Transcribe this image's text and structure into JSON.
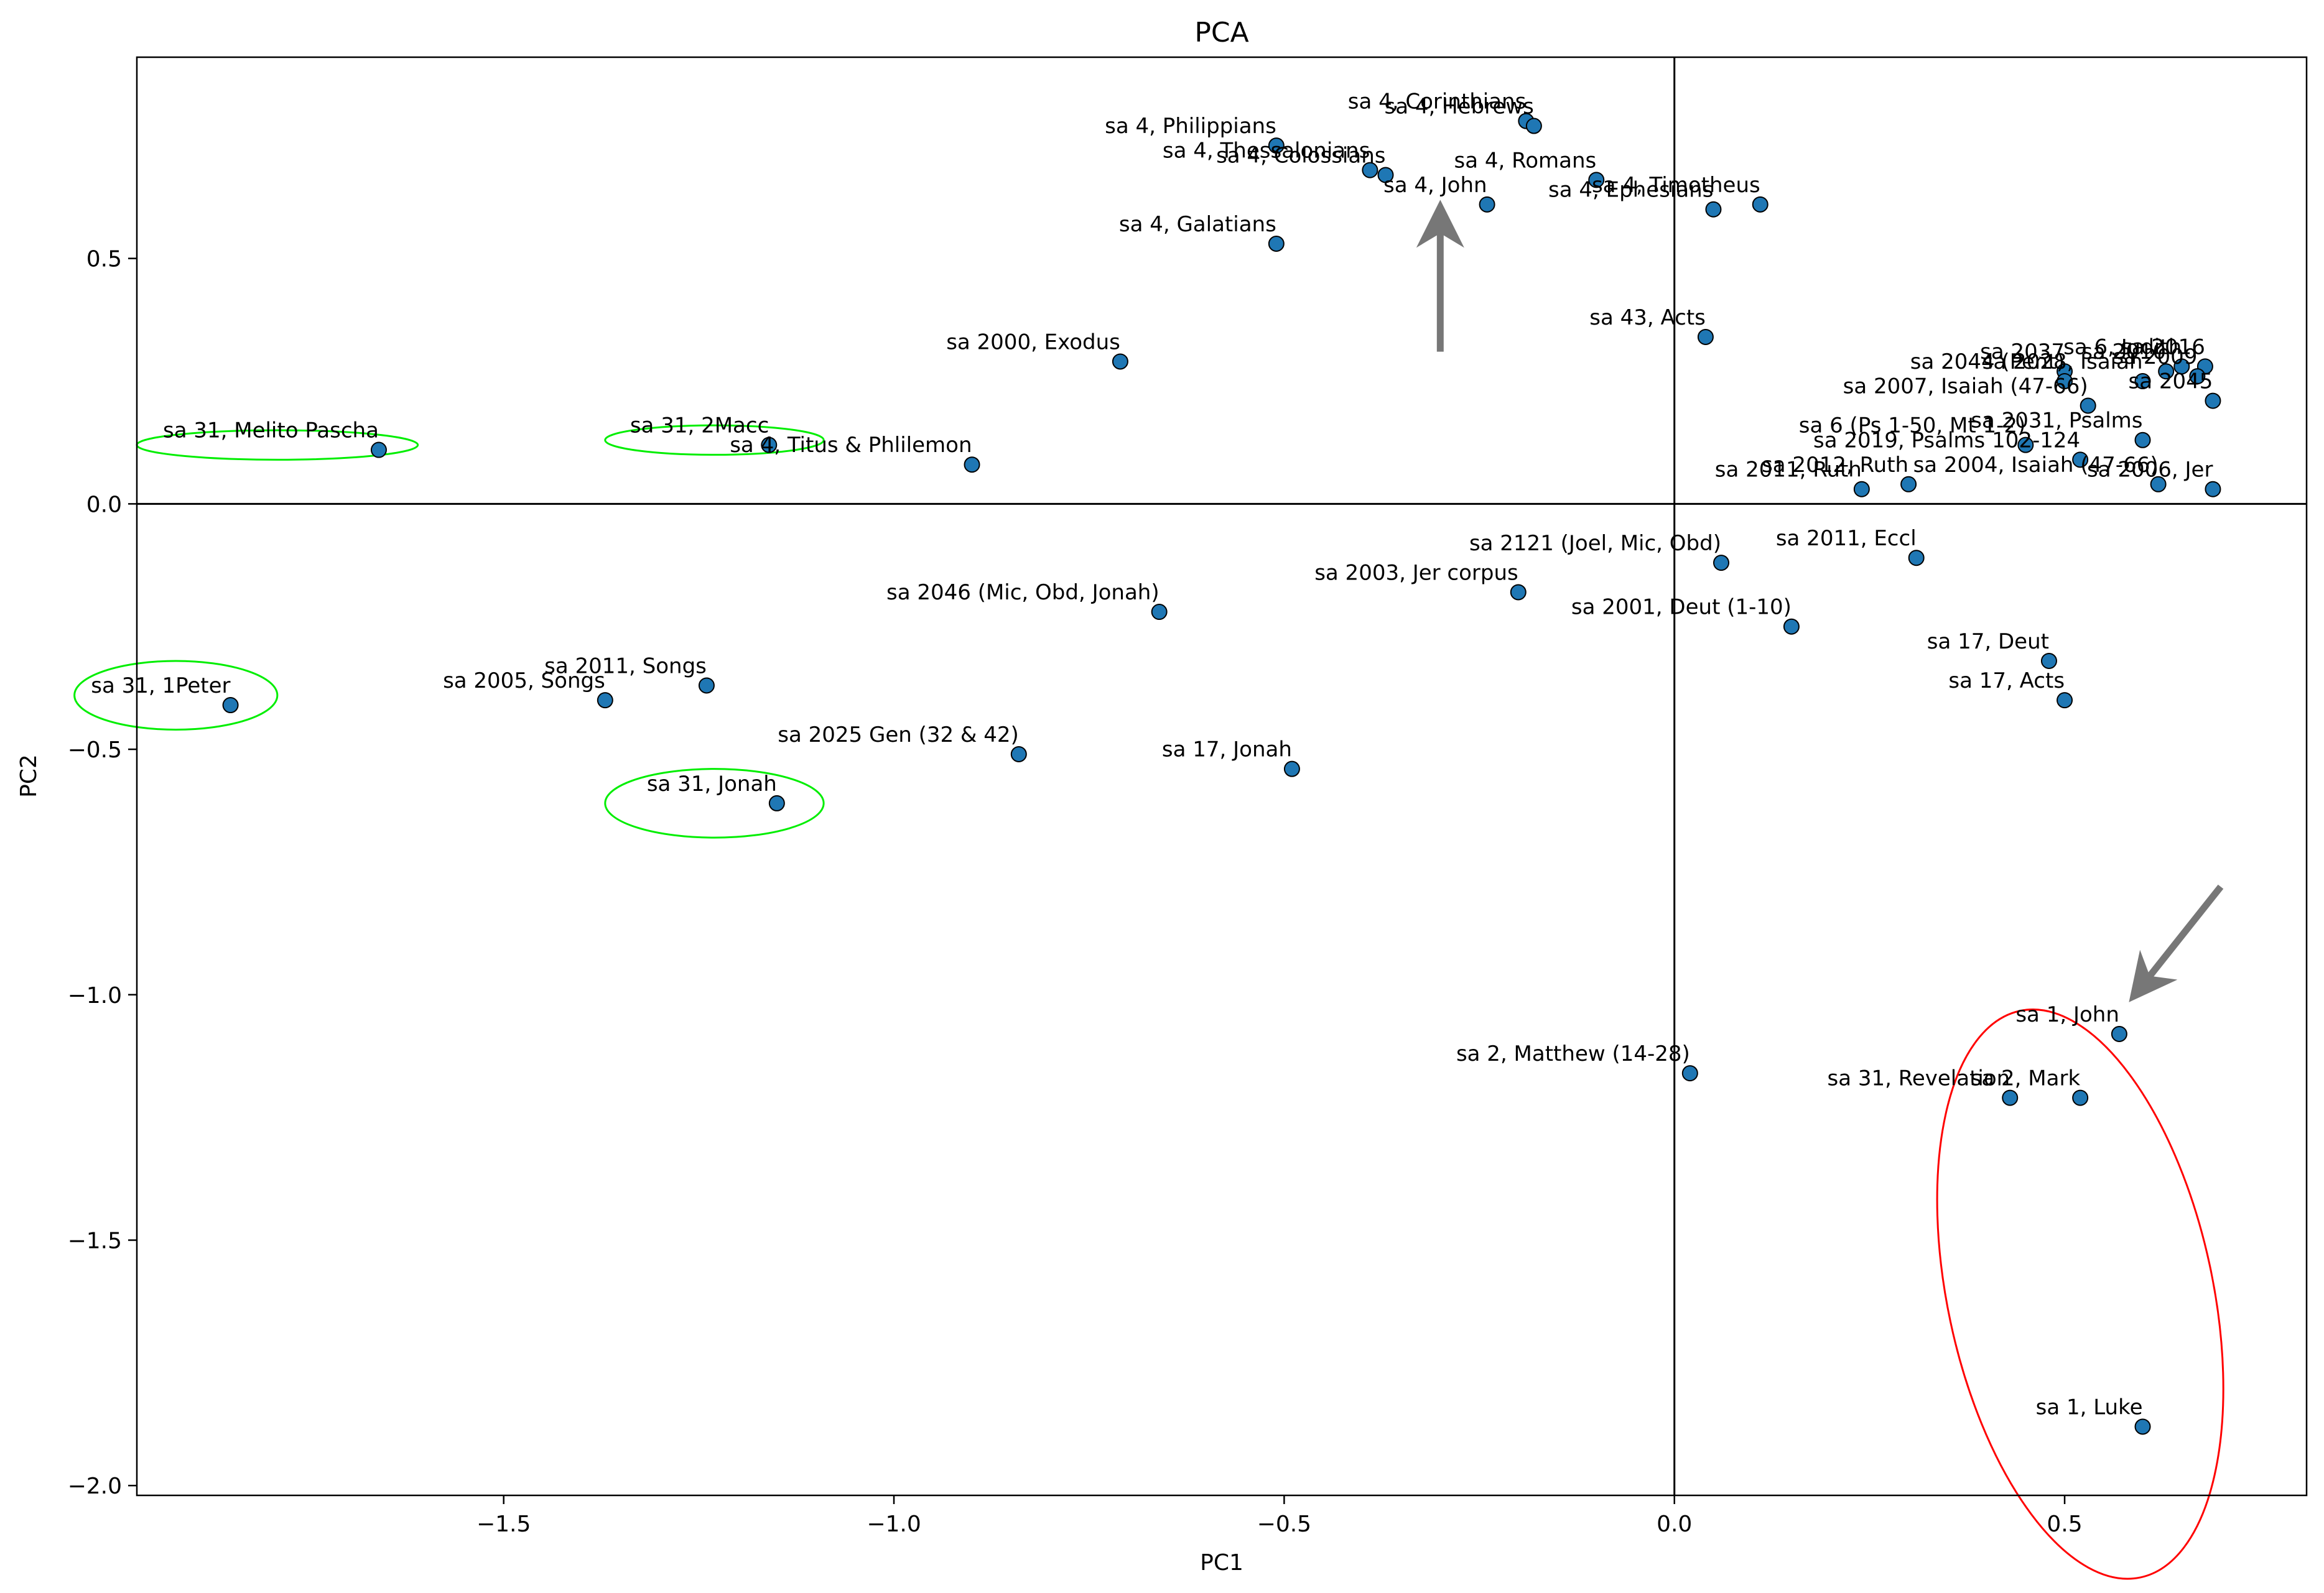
{
  "chart_data": {
    "type": "scatter",
    "title": "PCA",
    "xlabel": "PC1",
    "ylabel": "PC2",
    "xlim": [
      -1.97,
      0.81
    ],
    "ylim": [
      -2.02,
      0.91
    ],
    "x_ticks": [
      -1.5,
      -1.0,
      -0.5,
      0.0,
      0.5
    ],
    "x_tick_labels": [
      "−1.5",
      "−1.0",
      "−0.5",
      "0.0",
      "0.5"
    ],
    "y_ticks": [
      -2.0,
      -1.5,
      -1.0,
      -0.5,
      0.0,
      0.5
    ],
    "y_tick_labels": [
      "−2.0",
      "−1.5",
      "−1.0",
      "−0.5",
      "0.0",
      "0.5"
    ],
    "grid": false,
    "reference_lines": {
      "x": 0.0,
      "y": 0.0
    },
    "marker_color": "#1f77b4",
    "marker_edge_color": "#000000",
    "points": [
      {
        "label": "sa 31, Melito Pascha",
        "x": -1.66,
        "y": 0.11
      },
      {
        "label": "sa 31, 2Macc",
        "x": -1.16,
        "y": 0.12
      },
      {
        "label": "sa 4, Titus & Phlilemon",
        "x": -0.9,
        "y": 0.08
      },
      {
        "label": "sa 2000, Exodus",
        "x": -0.71,
        "y": 0.29
      },
      {
        "label": "sa 4, Galatians",
        "x": -0.51,
        "y": 0.53
      },
      {
        "label": "sa 4, Philippians",
        "x": -0.51,
        "y": 0.73
      },
      {
        "label": "sa 4, Thessalonians",
        "x": -0.39,
        "y": 0.68
      },
      {
        "label": "sa 4, Colossians",
        "x": -0.37,
        "y": 0.67
      },
      {
        "label": "sa 4, Corinthians",
        "x": -0.19,
        "y": 0.78
      },
      {
        "label": "sa 4, Hebrews",
        "x": -0.18,
        "y": 0.77
      },
      {
        "label": "sa 4, John",
        "x": -0.24,
        "y": 0.61
      },
      {
        "label": "sa 4, Romans",
        "x": -0.1,
        "y": 0.66
      },
      {
        "label": "sa 4, Ephesians",
        "x": 0.05,
        "y": 0.6
      },
      {
        "label": "sa 4, Timotheus",
        "x": 0.11,
        "y": 0.61
      },
      {
        "label": "sa 43, Acts",
        "x": 0.04,
        "y": 0.34
      },
      {
        "label": "sa 2037",
        "x": 0.5,
        "y": 0.27
      },
      {
        "label": "sa 2044 (Pent)",
        "x": 0.5,
        "y": 0.25
      },
      {
        "label": "sa 2028, Isaiah",
        "x": 0.6,
        "y": 0.25
      },
      {
        "label": "sa 2007, Isaiah (47-66)",
        "x": 0.53,
        "y": 0.2
      },
      {
        "label": "sa 6, Judith",
        "x": 0.65,
        "y": 0.28
      },
      {
        "label": "sa 2010",
        "x": 0.63,
        "y": 0.27
      },
      {
        "label": "sa 2016",
        "x": 0.68,
        "y": 0.28
      },
      {
        "label": "sa 2009",
        "x": 0.67,
        "y": 0.26
      },
      {
        "label": "sa 2045",
        "x": 0.69,
        "y": 0.21
      },
      {
        "label": "sa 2031, Psalms",
        "x": 0.6,
        "y": 0.13
      },
      {
        "label": "sa 6 (Ps 1-50, Mt 1-2)",
        "x": 0.45,
        "y": 0.12
      },
      {
        "label": "sa 2019, Psalms 102-124",
        "x": 0.52,
        "y": 0.09
      },
      {
        "label": "sa 2011, Ruth",
        "x": 0.24,
        "y": 0.03
      },
      {
        "label": "sa 2012, Ruth",
        "x": 0.3,
        "y": 0.04
      },
      {
        "label": "sa 2004, Isaiah (47-66)",
        "x": 0.62,
        "y": 0.04
      },
      {
        "label": "sa 2006, Jer",
        "x": 0.69,
        "y": 0.03
      },
      {
        "label": "sa 2121 (Joel, Mic, Obd)",
        "x": 0.06,
        "y": -0.12
      },
      {
        "label": "sa 2011, Eccl",
        "x": 0.31,
        "y": -0.11
      },
      {
        "label": "sa 2003, Jer corpus",
        "x": -0.2,
        "y": -0.18
      },
      {
        "label": "sa 2001, Deut (1-10)",
        "x": 0.15,
        "y": -0.25
      },
      {
        "label": "sa 2046 (Mic, Obd, Jonah)",
        "x": -0.66,
        "y": -0.22
      },
      {
        "label": "sa 17, Deut",
        "x": 0.48,
        "y": -0.32
      },
      {
        "label": "sa 17, Acts",
        "x": 0.5,
        "y": -0.4
      },
      {
        "label": "sa 31, 1Peter",
        "x": -1.85,
        "y": -0.41
      },
      {
        "label": "sa 2005, Songs",
        "x": -1.37,
        "y": -0.4
      },
      {
        "label": "sa 2011, Songs",
        "x": -1.24,
        "y": -0.37
      },
      {
        "label": "sa 2025 Gen (32 & 42)",
        "x": -0.84,
        "y": -0.51
      },
      {
        "label": "sa 17, Jonah",
        "x": -0.49,
        "y": -0.54
      },
      {
        "label": "sa 31, Jonah",
        "x": -1.15,
        "y": -0.61
      },
      {
        "label": "sa 2, Matthew (14-28)",
        "x": 0.02,
        "y": -1.16
      },
      {
        "label": "sa 1, John",
        "x": 0.57,
        "y": -1.08
      },
      {
        "label": "sa 31, Revelation",
        "x": 0.43,
        "y": -1.21
      },
      {
        "label": "sa 2, Mark",
        "x": 0.52,
        "y": -1.21
      },
      {
        "label": "sa 1, Luke",
        "x": 0.6,
        "y": -1.88
      }
    ],
    "annotations": [
      {
        "type": "ellipse",
        "color": "#00ee00",
        "cx": -1.79,
        "cy": 0.12,
        "rx": 0.18,
        "ry": 0.03,
        "angle": 0
      },
      {
        "type": "ellipse",
        "color": "#00ee00",
        "cx": -1.23,
        "cy": 0.13,
        "rx": 0.14,
        "ry": 0.03,
        "angle": 0
      },
      {
        "type": "ellipse",
        "color": "#00ee00",
        "cx": -1.92,
        "cy": -0.39,
        "rx": 0.13,
        "ry": 0.07,
        "angle": 0
      },
      {
        "type": "ellipse",
        "color": "#00ee00",
        "cx": -1.23,
        "cy": -0.61,
        "rx": 0.14,
        "ry": 0.07,
        "angle": 0
      },
      {
        "type": "ellipse",
        "color": "#ff0000",
        "cx": 0.52,
        "cy": -1.61,
        "rx": 0.17,
        "ry": 0.59,
        "angle": -12
      },
      {
        "type": "arrow",
        "color": "#777777",
        "x1": -0.3,
        "y1": 0.31,
        "x2": -0.3,
        "y2": 0.6
      },
      {
        "type": "arrow",
        "color": "#777777",
        "x1": 0.7,
        "y1": -0.78,
        "x2": 0.59,
        "y2": -1.0
      }
    ]
  }
}
